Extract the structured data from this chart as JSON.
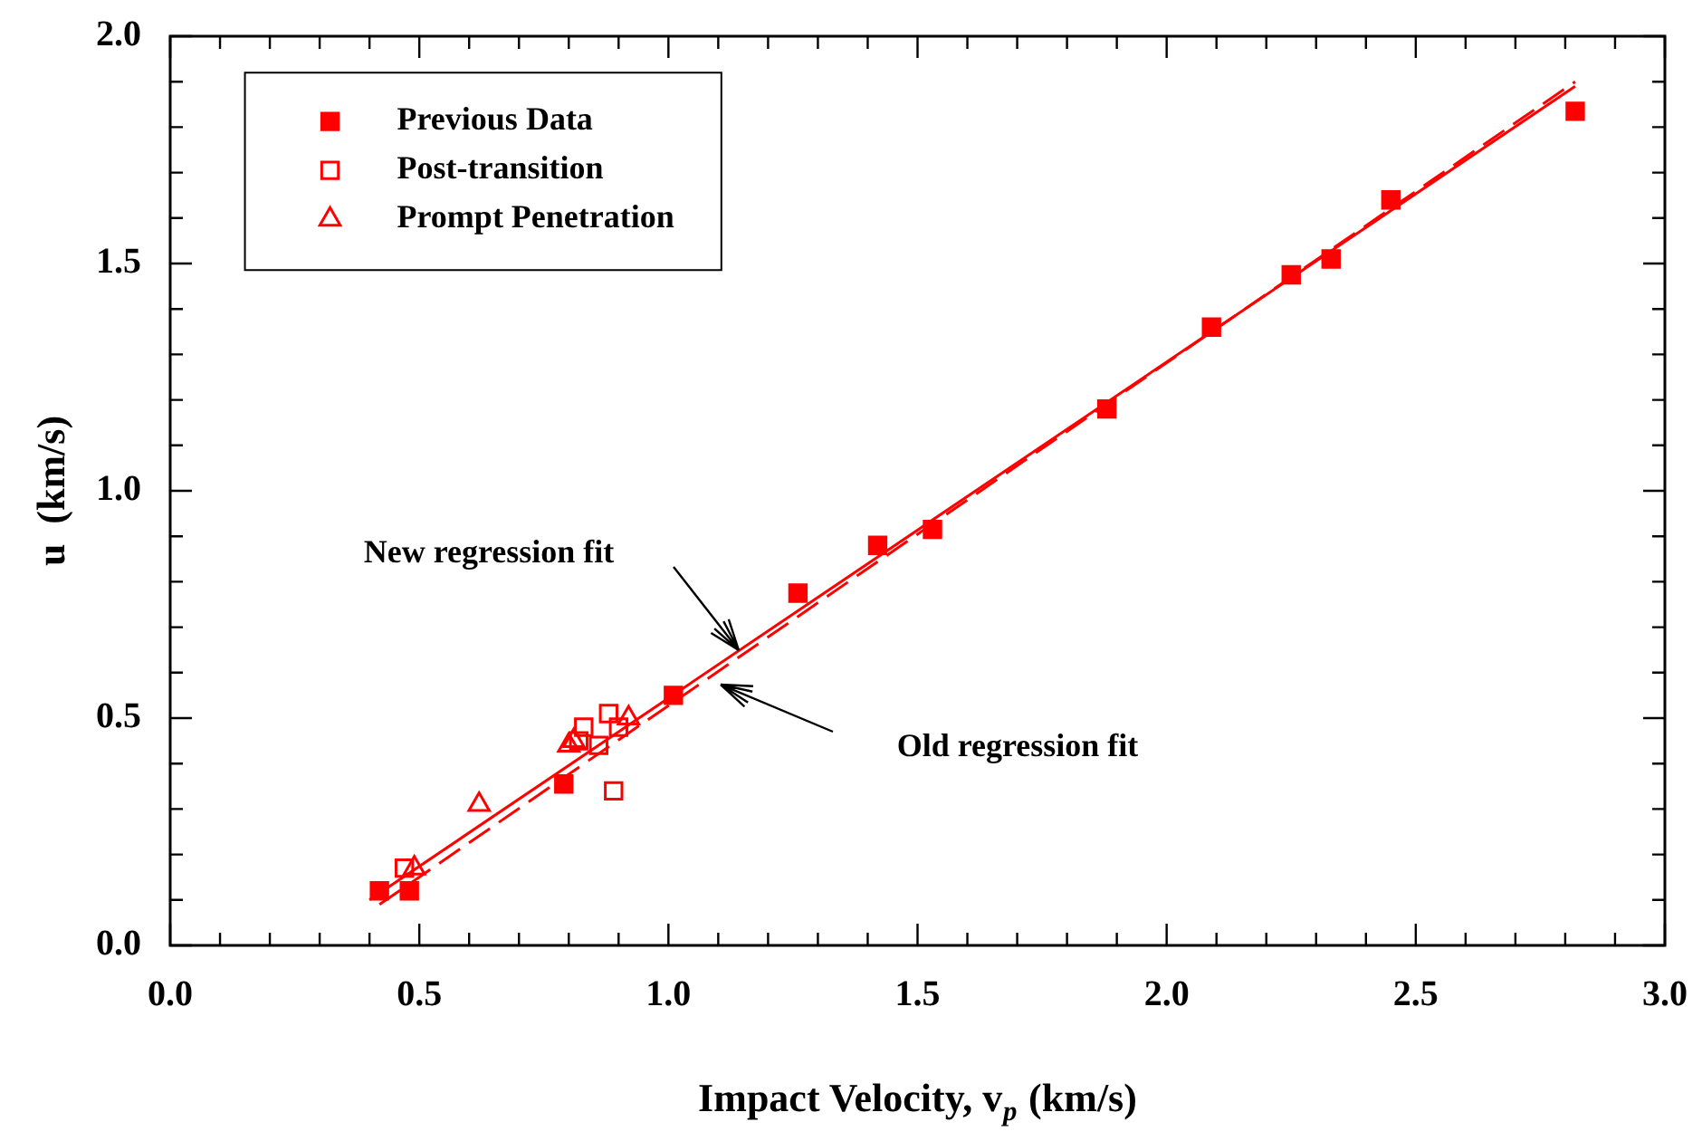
{
  "chart_data": {
    "type": "scatter",
    "xlabel": "Impact Velocity, v$_{p}$ (km/s)",
    "ylabel": "u  (km/s)",
    "xlim": [
      0,
      3
    ],
    "ylim": [
      0,
      2
    ],
    "xticks": [
      {
        "value": 0,
        "label": "0.0"
      },
      {
        "value": 0.1,
        "label": null
      },
      {
        "value": 0.2,
        "label": null
      },
      {
        "value": 0.3,
        "label": null
      },
      {
        "value": 0.4,
        "label": null
      },
      {
        "value": 0.5,
        "label": "0.5"
      },
      {
        "value": 0.6,
        "label": null
      },
      {
        "value": 0.7,
        "label": null
      },
      {
        "value": 0.8,
        "label": null
      },
      {
        "value": 0.9,
        "label": null
      },
      {
        "value": 1,
        "label": "1.0"
      },
      {
        "value": 1.1,
        "label": null
      },
      {
        "value": 1.2,
        "label": null
      },
      {
        "value": 1.3,
        "label": null
      },
      {
        "value": 1.4,
        "label": null
      },
      {
        "value": 1.5,
        "label": "1.5"
      },
      {
        "value": 1.6,
        "label": null
      },
      {
        "value": 1.7,
        "label": null
      },
      {
        "value": 1.8,
        "label": null
      },
      {
        "value": 1.9,
        "label": null
      },
      {
        "value": 2,
        "label": "2.0"
      },
      {
        "value": 2.1,
        "label": null
      },
      {
        "value": 2.2,
        "label": null
      },
      {
        "value": 2.3,
        "label": null
      },
      {
        "value": 2.4,
        "label": null
      },
      {
        "value": 2.5,
        "label": "2.5"
      },
      {
        "value": 2.6,
        "label": null
      },
      {
        "value": 2.7,
        "label": null
      },
      {
        "value": 2.8,
        "label": null
      },
      {
        "value": 2.9,
        "label": null
      },
      {
        "value": 3,
        "label": "3.0"
      }
    ],
    "yticks": [
      {
        "value": 0,
        "label": "0.0"
      },
      {
        "value": 0.1,
        "label": null
      },
      {
        "value": 0.2,
        "label": null
      },
      {
        "value": 0.3,
        "label": null
      },
      {
        "value": 0.4,
        "label": null
      },
      {
        "value": 0.5,
        "label": "0.5"
      },
      {
        "value": 0.6,
        "label": null
      },
      {
        "value": 0.7,
        "label": null
      },
      {
        "value": 0.8,
        "label": null
      },
      {
        "value": 0.9,
        "label": null
      },
      {
        "value": 1,
        "label": "1.0"
      },
      {
        "value": 1.1,
        "label": null
      },
      {
        "value": 1.2,
        "label": null
      },
      {
        "value": 1.3,
        "label": null
      },
      {
        "value": 1.4,
        "label": null
      },
      {
        "value": 1.5,
        "label": "1.5"
      },
      {
        "value": 1.6,
        "label": null
      },
      {
        "value": 1.7,
        "label": null
      },
      {
        "value": 1.8,
        "label": null
      },
      {
        "value": 1.9,
        "label": null
      },
      {
        "value": 2,
        "label": "2.0"
      }
    ],
    "grid": false,
    "legend": "top left",
    "series": [
      {
        "name": "Previous Data",
        "color": "#ff0000",
        "marker": "square",
        "x": [
          0.42,
          0.48,
          0.79,
          1.01,
          1.26,
          1.42,
          1.53,
          1.88,
          2.09,
          2.25,
          2.33,
          2.45,
          2.82
        ],
        "values": [
          0.12,
          0.12,
          0.355,
          0.55,
          0.775,
          0.88,
          0.915,
          1.18,
          1.36,
          1.475,
          1.51,
          1.64,
          1.835
        ]
      },
      {
        "name": "Post-transition",
        "color": "#ff0000",
        "marker": "square",
        "x": [
          0.47,
          0.82,
          0.83,
          0.86,
          0.88,
          0.9,
          0.89
        ],
        "values": [
          0.17,
          0.45,
          0.48,
          0.44,
          0.51,
          0.48,
          0.34
        ]
      },
      {
        "name": "Prompt Penetration",
        "color": "#ff0000",
        "marker": "triangle",
        "x": [
          0.49,
          0.62,
          0.8,
          0.81,
          0.92
        ],
        "values": [
          0.17,
          0.31,
          0.44,
          0.45,
          0.5
        ]
      },
      {
        "type": "line",
        "color": "#ff0000",
        "marker": "none",
        "line_style": "solid",
        "x": [
          0.4,
          2.82
        ],
        "values": [
          0.1,
          1.89
        ]
      },
      {
        "type": "line",
        "color": "#ff0000",
        "marker": "none",
        "line_style": "dashed",
        "x": [
          0.42,
          2.82
        ],
        "values": [
          0.09,
          1.9
        ]
      }
    ],
    "annotations": [
      "New regression fit",
      "Old regression fit"
    ]
  }
}
